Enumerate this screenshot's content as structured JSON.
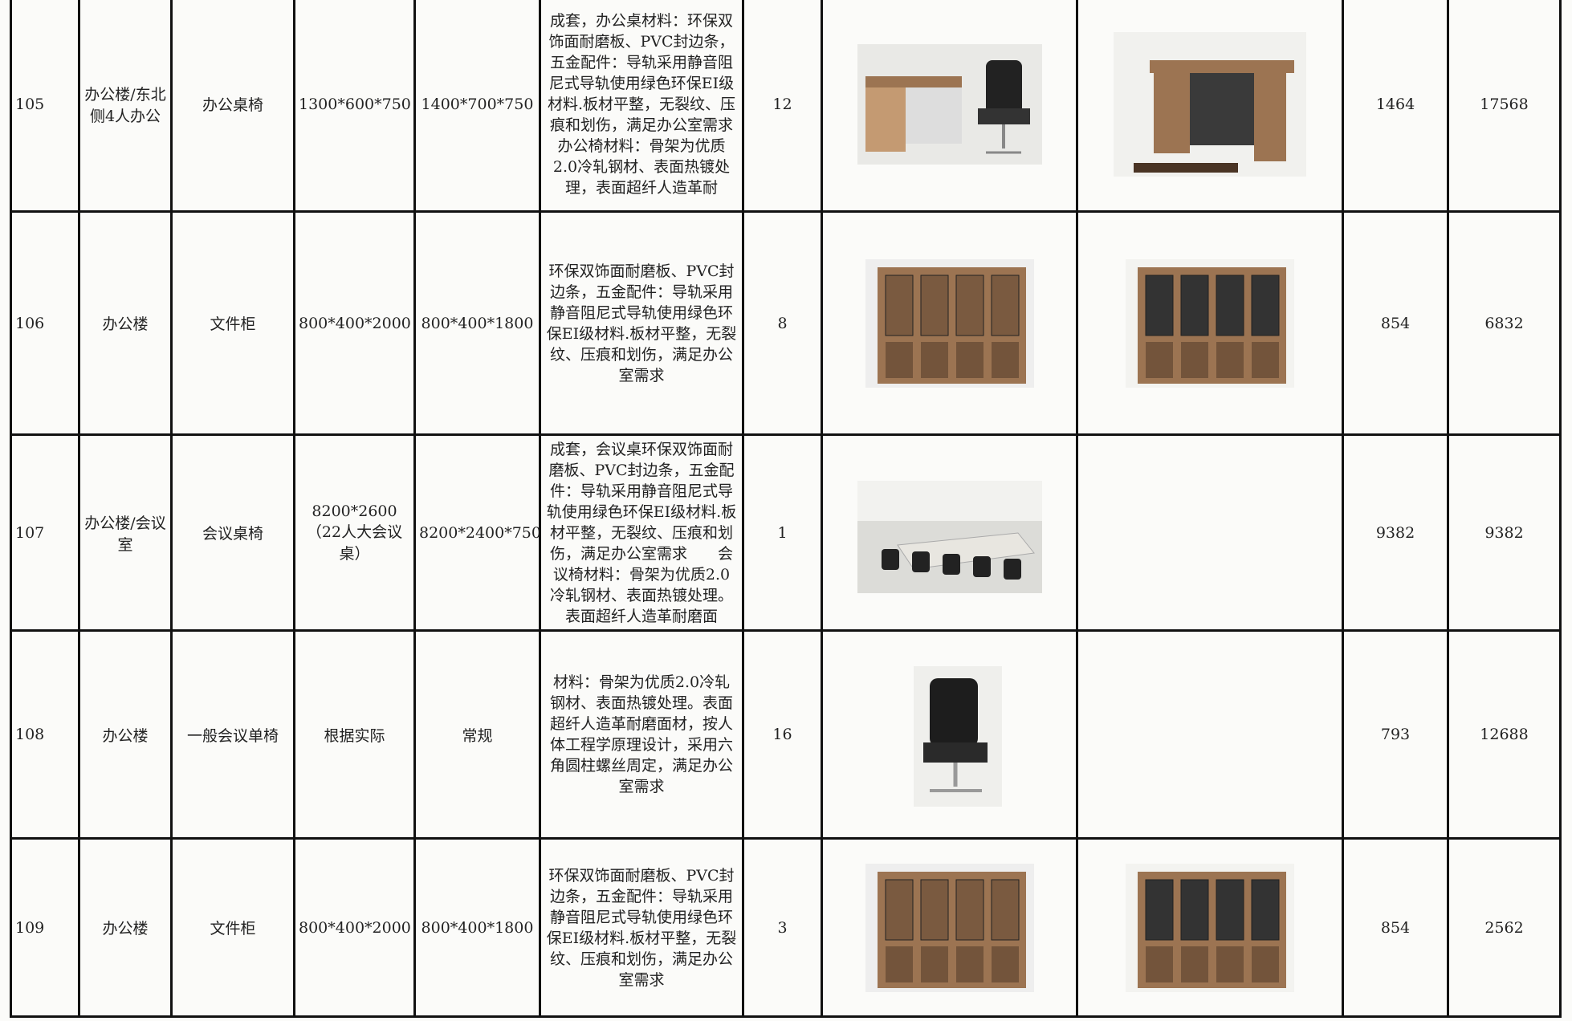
{
  "table": {
    "rows": [
      {
        "no": "105",
        "location": "办公楼/东北侧4人办公",
        "name": "办公桌椅",
        "size": "1300*600*750",
        "spec": "1400*700*750",
        "desc": "成套，办公桌材料：环保双饰面耐磨板、PVC封边条，五金配件：导轨采用静音阻尼式导轨使用绿色环保EI级材料.板材平整，无裂纹、压痕和划伤，满足办公室需求 办公椅材料：骨架为优质2.0冷轧钢材、表面热镀处理，表面超纤人造革耐",
        "qty": "12",
        "price": "1464",
        "total": "17568"
      },
      {
        "no": "106",
        "location": "办公楼",
        "name": "文件柜",
        "size": "800*400*2000",
        "spec": "800*400*1800",
        "desc": "环保双饰面耐磨板、PVC封边条，五金配件：导轨采用静音阻尼式导轨使用绿色环保EI级材料.板材平整，无裂纹、压痕和划伤，满足办公室需求",
        "qty": "8",
        "price": "854",
        "total": "6832"
      },
      {
        "no": "107",
        "location": "办公楼/会议室",
        "name": "会议桌椅",
        "size": "8200*2600（22人大会议桌）",
        "spec": "8200*2400*750",
        "desc": "成套，会议桌环保双饰面耐磨板、PVC封边条，五金配件：导轨采用静音阻尼式导轨使用绿色环保EI级材料.板材平整，无裂纹、压痕和划伤，满足办公室需求　　会议椅材料：骨架为优质2.0冷轧钢材、表面热镀处理。表面超纤人造革耐磨面",
        "qty": "1",
        "price": "9382",
        "total": "9382"
      },
      {
        "no": "108",
        "location": "办公楼",
        "name": "一般会议单椅",
        "size": "根据实际",
        "spec": "常规",
        "desc": "材料：骨架为优质2.0冷轧钢材、表面热镀处理。表面超纤人造革耐磨面材，按人体工程学原理设计，采用六角圆柱螺丝周定，满足办公室需求",
        "qty": "16",
        "price": "793",
        "total": "12688"
      },
      {
        "no": "109",
        "location": "办公楼",
        "name": "文件柜",
        "size": "800*400*2000",
        "spec": "800*400*1800",
        "desc": "环保双饰面耐磨板、PVC封边条，五金配件：导轨采用静音阻尼式导轨使用绿色环保EI级材料.板材平整，无裂纹、压痕和划伤，满足办公室需求",
        "qty": "3",
        "price": "854",
        "total": "2562"
      }
    ]
  }
}
